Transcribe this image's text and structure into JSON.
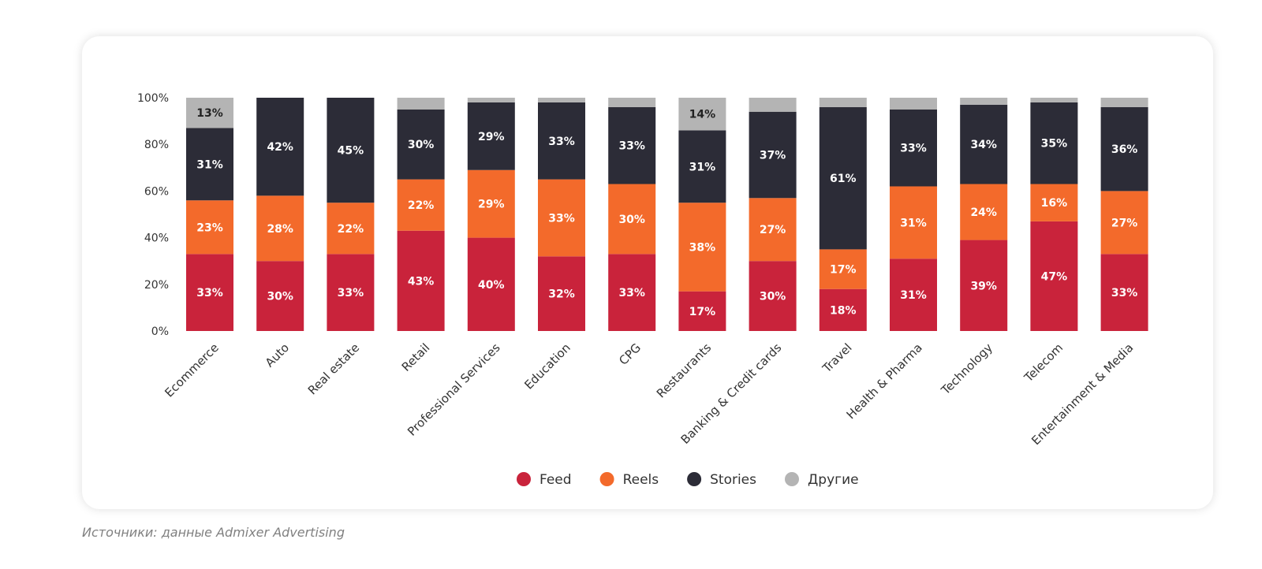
{
  "chart_data": {
    "type": "bar",
    "stacked": true,
    "categories": [
      "Ecommerce",
      "Auto",
      "Real estate",
      "Retail",
      "Professional Services",
      "Education",
      "CPG",
      "Restaurants",
      "Banking & Credit cards",
      "Travel",
      "Health & Pharma",
      "Technology",
      "Telecom",
      "Entertainment & Media"
    ],
    "series": [
      {
        "name": "Feed",
        "color": "#c9233b",
        "values": [
          33,
          30,
          33,
          43,
          40,
          32,
          33,
          17,
          30,
          18,
          31,
          39,
          47,
          33
        ]
      },
      {
        "name": "Reels",
        "color": "#f36a2b",
        "values": [
          23,
          28,
          22,
          22,
          29,
          33,
          30,
          38,
          27,
          17,
          31,
          24,
          16,
          27
        ]
      },
      {
        "name": "Stories",
        "color": "#2c2c37",
        "values": [
          31,
          42,
          45,
          30,
          29,
          33,
          33,
          31,
          37,
          61,
          33,
          34,
          35,
          36
        ]
      },
      {
        "name": "Другие",
        "color": "#b4b4b4",
        "values": [
          13,
          0,
          0,
          5,
          2,
          2,
          4,
          14,
          6,
          4,
          5,
          3,
          2,
          4
        ]
      }
    ],
    "labels": {
      "Feed": [
        "33%",
        "30%",
        "33%",
        "43%",
        "40%",
        "32%",
        "33%",
        "17%",
        "30%",
        "18%",
        "31%",
        "39%",
        "47%",
        "33%"
      ],
      "Reels": [
        "23%",
        "28%",
        "22%",
        "22%",
        "29%",
        "33%",
        "30%",
        "38%",
        "27%",
        "17%",
        "31%",
        "24%",
        "16%",
        "27%"
      ],
      "Stories": [
        "31%",
        "42%",
        "45%",
        "30%",
        "29%",
        "33%",
        "33%",
        "31%",
        "37%",
        "61%",
        "33%",
        "34%",
        "35%",
        "36%"
      ],
      "Другие": [
        "13%",
        "",
        "",
        "",
        "",
        "",
        "",
        "14%",
        "",
        "",
        "",
        "",
        "",
        ""
      ]
    },
    "y_ticks": [
      "0%",
      "20%",
      "40%",
      "60%",
      "80%",
      "100%"
    ],
    "ylim": [
      0,
      100
    ],
    "grid": false,
    "legend_position": "bottom-center"
  },
  "source_text": "Источники: данные Admixer Advertising"
}
